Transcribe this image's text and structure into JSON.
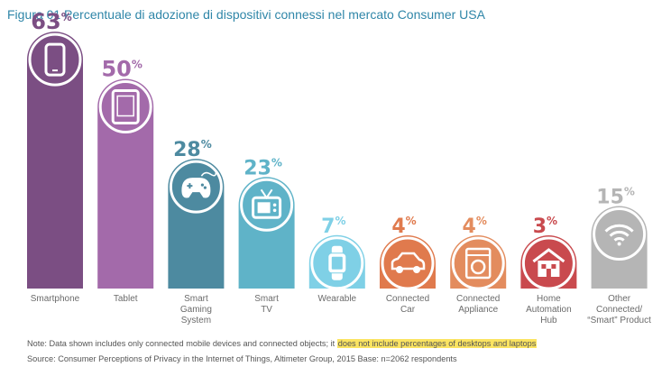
{
  "figure_title": "Figura 01 Percentuale di adozione di dispositivi connessi nel mercato Consumer USA",
  "note": {
    "prefix": "Note: Data shown includes only connected mobile devices and connected objects; it ",
    "highlight": "does not include percentages of desktops and laptops"
  },
  "source": "Source: Consumer Perceptions of Privacy in the Internet of Things, Altimeter Group, 2015  Base: n=2062 respondents",
  "percent_symbol": "%",
  "chart_data": {
    "type": "bar",
    "title": "",
    "xlabel": "",
    "ylabel": "",
    "ylim": [
      0,
      63
    ],
    "grid": false,
    "categories": [
      [
        "Smartphone"
      ],
      [
        "Tablet"
      ],
      [
        "Smart",
        "Gaming",
        "System"
      ],
      [
        "Smart",
        "TV"
      ],
      [
        "Wearable"
      ],
      [
        "Connected",
        "Car"
      ],
      [
        "Connected",
        "Appliance"
      ],
      [
        "Home",
        "Automation",
        "Hub"
      ],
      [
        "Other",
        "Connected/",
        "“Smart” Product"
      ]
    ],
    "values": [
      63,
      50,
      28,
      23,
      7,
      4,
      4,
      3,
      15
    ],
    "colors": [
      "#7b4e83",
      "#a36aaa",
      "#4d8aa0",
      "#5fb3c8",
      "#7fd0e6",
      "#e07a4d",
      "#e38c5e",
      "#c94a4e",
      "#b5b5b5"
    ],
    "icons": [
      "smartphone-icon",
      "tablet-icon",
      "gamepad-icon",
      "tv-icon",
      "smartwatch-icon",
      "car-icon",
      "washing-machine-icon",
      "house-icon",
      "wifi-icon"
    ]
  }
}
